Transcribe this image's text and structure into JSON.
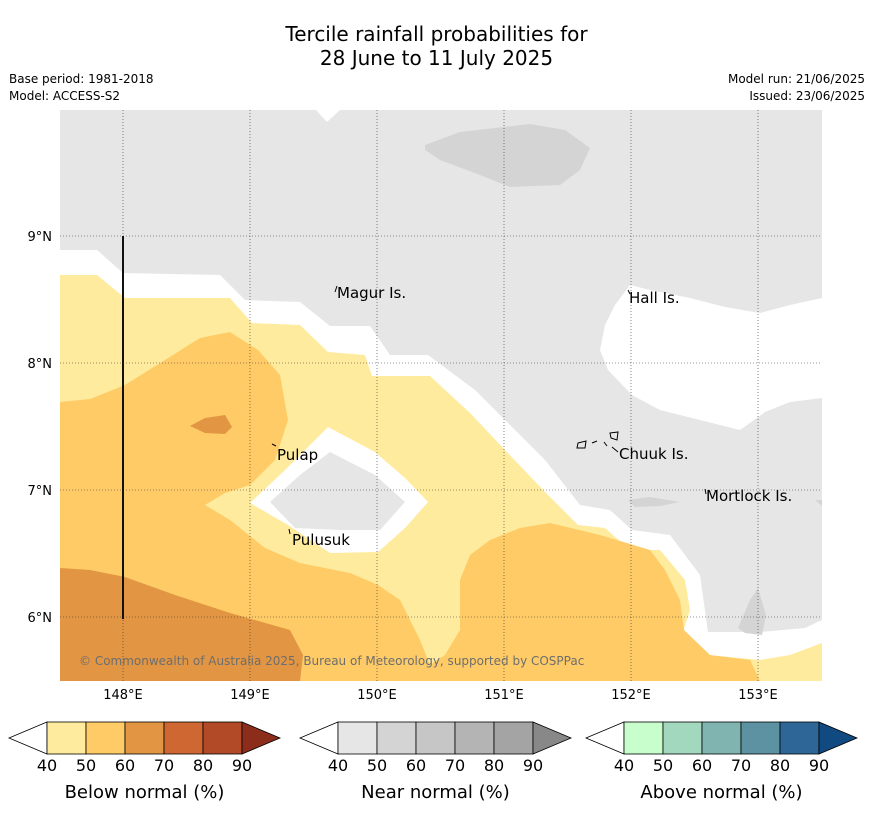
{
  "title": {
    "line1": "Tercile rainfall probabilities for",
    "line2": "28 June to 11 July 2025"
  },
  "meta": {
    "base_period": "Base period: 1981-2018",
    "model": "Model: ACCESS-S2",
    "model_run": "Model run: 21/06/2025",
    "issued": "Issued: 23/06/2025"
  },
  "map": {
    "lon_labels": [
      "148°E",
      "149°E",
      "150°E",
      "151°E",
      "152°E",
      "153°E"
    ],
    "lat_labels": [
      "9°N",
      "8°N",
      "7°N",
      "6°N"
    ],
    "places": [
      "Magur Is.",
      "Hall Is.",
      "Pulap",
      "Chuuk Is.",
      "Mortlock Is.",
      "Pulusuk"
    ],
    "copyright": "© Commonwealth of Australia 2025, Bureau of Meteorology, supported by COSPPac"
  },
  "legend": {
    "below": {
      "title": "Below normal (%)",
      "ticks": [
        "40",
        "50",
        "60",
        "70",
        "80",
        "90"
      ],
      "colors": [
        "#ffffff",
        "#ffeb9d",
        "#fecb66",
        "#e29542",
        "#cf6733",
        "#b24a28",
        "#8c2d1c"
      ]
    },
    "near": {
      "title": "Near normal (%)",
      "ticks": [
        "40",
        "50",
        "60",
        "70",
        "80",
        "90"
      ],
      "colors": [
        "#ffffff",
        "#e6e6e6",
        "#d4d4d4",
        "#c6c6c6",
        "#b4b4b4",
        "#a4a4a4",
        "#888888"
      ]
    },
    "above": {
      "title": "Above normal (%)",
      "ticks": [
        "40",
        "50",
        "60",
        "70",
        "80",
        "90"
      ],
      "colors": [
        "#ffffff",
        "#c8fdcc",
        "#a2d9be",
        "#7fb4b0",
        "#5c92a2",
        "#2f6698",
        "#114a81"
      ]
    }
  }
}
